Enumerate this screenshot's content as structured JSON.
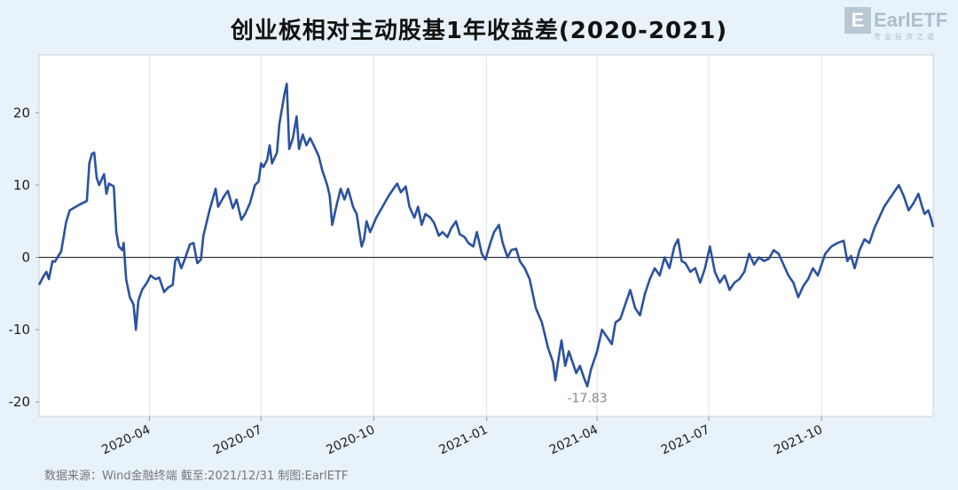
{
  "header": {
    "title": "创业板相对主动股基1年收益差(2020-2021)",
    "logo_text": "EarlETF",
    "logo_letter": "E",
    "logo_sub": "专业投资之道"
  },
  "footer": {
    "source": "数据来源：Wind金融终端 截至:2021/12/31 制图:EarlETF"
  },
  "colors": {
    "line": "#2a52a0",
    "background": "#e7f2fa",
    "plot_background": "#ffffff",
    "zero_line": "#333333",
    "annotation": "#888888"
  },
  "chart_data": {
    "type": "line",
    "title": "创业板相对主动股基1年收益差(2020-2021)",
    "xlabel": "",
    "ylabel": "",
    "xlim": [
      "2020-01-02",
      "2021-12-31"
    ],
    "ylim": [
      -22,
      28
    ],
    "y_ticks": [
      -20,
      -10,
      0,
      10,
      20
    ],
    "x_ticks": [
      {
        "date": "2020-04-01",
        "label": "2020-04"
      },
      {
        "date": "2020-07-01",
        "label": "2020-07"
      },
      {
        "date": "2020-10-01",
        "label": "2020-10"
      },
      {
        "date": "2021-01-01",
        "label": "2021-01"
      },
      {
        "date": "2021-04-01",
        "label": "2021-04"
      },
      {
        "date": "2021-07-01",
        "label": "2021-07"
      },
      {
        "date": "2021-10-01",
        "label": "2021-10"
      }
    ],
    "grid": {
      "x": true,
      "y": false
    },
    "reference_line": 0,
    "annotations": [
      {
        "date": "2021-03-24",
        "value": -17.83,
        "text": "-17.83"
      }
    ],
    "series": [
      {
        "points": [
          [
            "2020-01-02",
            -3.8
          ],
          [
            "2020-01-06",
            -2.5
          ],
          [
            "2020-01-08",
            -2.0
          ],
          [
            "2020-01-10",
            -3.0
          ],
          [
            "2020-01-13",
            -0.5
          ],
          [
            "2020-01-15",
            -0.6
          ],
          [
            "2020-01-17",
            0.0
          ],
          [
            "2020-01-20",
            0.8
          ],
          [
            "2020-01-22",
            2.8
          ],
          [
            "2020-01-24",
            4.8
          ],
          [
            "2020-01-27",
            6.5
          ],
          [
            "2020-02-03",
            7.2
          ],
          [
            "2020-02-10",
            7.8
          ],
          [
            "2020-02-12",
            13.0
          ],
          [
            "2020-02-14",
            14.3
          ],
          [
            "2020-02-16",
            14.5
          ],
          [
            "2020-02-18",
            11.0
          ],
          [
            "2020-02-20",
            10.0
          ],
          [
            "2020-02-24",
            11.5
          ],
          [
            "2020-02-26",
            8.8
          ],
          [
            "2020-02-28",
            10.2
          ],
          [
            "2020-03-03",
            9.8
          ],
          [
            "2020-03-05",
            3.5
          ],
          [
            "2020-03-07",
            1.5
          ],
          [
            "2020-03-10",
            1.0
          ],
          [
            "2020-03-11",
            2.0
          ],
          [
            "2020-03-13",
            -3.0
          ],
          [
            "2020-03-16",
            -5.5
          ],
          [
            "2020-03-19",
            -6.5
          ],
          [
            "2020-03-21",
            -10.0
          ],
          [
            "2020-03-23",
            -6.0
          ],
          [
            "2020-03-26",
            -4.5
          ],
          [
            "2020-03-30",
            -3.5
          ],
          [
            "2020-04-02",
            -2.5
          ],
          [
            "2020-04-06",
            -3.0
          ],
          [
            "2020-04-09",
            -2.8
          ],
          [
            "2020-04-13",
            -4.8
          ],
          [
            "2020-04-16",
            -4.2
          ],
          [
            "2020-04-20",
            -3.8
          ],
          [
            "2020-04-22",
            -0.5
          ],
          [
            "2020-04-24",
            0.0
          ],
          [
            "2020-04-27",
            -1.5
          ],
          [
            "2020-04-30",
            -0.2
          ],
          [
            "2020-05-04",
            1.8
          ],
          [
            "2020-05-07",
            2.0
          ],
          [
            "2020-05-10",
            -0.8
          ],
          [
            "2020-05-13",
            -0.3
          ],
          [
            "2020-05-15",
            3.0
          ],
          [
            "2020-05-20",
            6.5
          ],
          [
            "2020-05-25",
            9.5
          ],
          [
            "2020-05-27",
            7.0
          ],
          [
            "2020-06-01",
            8.5
          ],
          [
            "2020-06-04",
            9.2
          ],
          [
            "2020-06-08",
            6.8
          ],
          [
            "2020-06-11",
            8.0
          ],
          [
            "2020-06-15",
            5.2
          ],
          [
            "2020-06-18",
            6.0
          ],
          [
            "2020-06-22",
            7.5
          ],
          [
            "2020-06-26",
            10.0
          ],
          [
            "2020-06-29",
            10.5
          ],
          [
            "2020-07-01",
            13.0
          ],
          [
            "2020-07-03",
            12.5
          ],
          [
            "2020-07-06",
            13.5
          ],
          [
            "2020-07-08",
            15.5
          ],
          [
            "2020-07-10",
            13.0
          ],
          [
            "2020-07-14",
            14.5
          ],
          [
            "2020-07-16",
            18.5
          ],
          [
            "2020-07-18",
            20.5
          ],
          [
            "2020-07-20",
            22.5
          ],
          [
            "2020-07-22",
            24.0
          ],
          [
            "2020-07-24",
            15.0
          ],
          [
            "2020-07-27",
            16.5
          ],
          [
            "2020-07-30",
            19.5
          ],
          [
            "2020-08-01",
            15.0
          ],
          [
            "2020-08-04",
            17.0
          ],
          [
            "2020-08-07",
            15.5
          ],
          [
            "2020-08-10",
            16.5
          ],
          [
            "2020-08-13",
            15.5
          ],
          [
            "2020-08-17",
            14.0
          ],
          [
            "2020-08-20",
            12.0
          ],
          [
            "2020-08-24",
            10.0
          ],
          [
            "2020-08-26",
            8.5
          ],
          [
            "2020-08-28",
            4.5
          ],
          [
            "2020-09-01",
            7.5
          ],
          [
            "2020-09-04",
            9.5
          ],
          [
            "2020-09-07",
            8.0
          ],
          [
            "2020-09-10",
            9.5
          ],
          [
            "2020-09-14",
            7.0
          ],
          [
            "2020-09-17",
            6.0
          ],
          [
            "2020-09-21",
            1.5
          ],
          [
            "2020-09-23",
            2.5
          ],
          [
            "2020-09-25",
            5.0
          ],
          [
            "2020-09-28",
            3.5
          ],
          [
            "2020-10-03",
            5.5
          ],
          [
            "2020-10-08",
            7.0
          ],
          [
            "2020-10-13",
            8.5
          ],
          [
            "2020-10-17",
            9.5
          ],
          [
            "2020-10-20",
            10.2
          ],
          [
            "2020-10-23",
            9.0
          ],
          [
            "2020-10-27",
            9.8
          ],
          [
            "2020-10-30",
            7.0
          ],
          [
            "2020-11-03",
            5.5
          ],
          [
            "2020-11-06",
            7.0
          ],
          [
            "2020-11-09",
            4.5
          ],
          [
            "2020-11-12",
            6.0
          ],
          [
            "2020-11-16",
            5.5
          ],
          [
            "2020-11-19",
            4.8
          ],
          [
            "2020-11-23",
            3.0
          ],
          [
            "2020-11-26",
            3.5
          ],
          [
            "2020-11-30",
            2.8
          ],
          [
            "2020-12-03",
            4.0
          ],
          [
            "2020-12-07",
            5.0
          ],
          [
            "2020-12-10",
            3.2
          ],
          [
            "2020-12-14",
            2.8
          ],
          [
            "2020-12-17",
            2.0
          ],
          [
            "2020-12-21",
            1.5
          ],
          [
            "2020-12-24",
            3.5
          ],
          [
            "2020-12-28",
            0.5
          ],
          [
            "2020-12-31",
            -0.3
          ],
          [
            "2021-01-04",
            2.0
          ],
          [
            "2021-01-07",
            3.5
          ],
          [
            "2021-01-11",
            4.5
          ],
          [
            "2021-01-14",
            2.0
          ],
          [
            "2021-01-18",
            0.0
          ],
          [
            "2021-01-21",
            1.0
          ],
          [
            "2021-01-25",
            1.2
          ],
          [
            "2021-01-28",
            -0.5
          ],
          [
            "2021-02-01",
            -1.5
          ],
          [
            "2021-02-05",
            -3.0
          ],
          [
            "2021-02-10",
            -7.0
          ],
          [
            "2021-02-15",
            -9.0
          ],
          [
            "2021-02-20",
            -12.5
          ],
          [
            "2021-02-24",
            -14.5
          ],
          [
            "2021-02-26",
            -17.0
          ],
          [
            "2021-03-01",
            -13.5
          ],
          [
            "2021-03-03",
            -11.5
          ],
          [
            "2021-03-06",
            -15.0
          ],
          [
            "2021-03-09",
            -13.0
          ],
          [
            "2021-03-12",
            -14.5
          ],
          [
            "2021-03-15",
            -16.0
          ],
          [
            "2021-03-18",
            -15.0
          ],
          [
            "2021-03-21",
            -16.5
          ],
          [
            "2021-03-24",
            -17.83
          ],
          [
            "2021-03-27",
            -15.5
          ],
          [
            "2021-04-01",
            -13.0
          ],
          [
            "2021-04-05",
            -10.0
          ],
          [
            "2021-04-09",
            -11.0
          ],
          [
            "2021-04-13",
            -12.0
          ],
          [
            "2021-04-16",
            -9.0
          ],
          [
            "2021-04-20",
            -8.5
          ],
          [
            "2021-04-24",
            -6.5
          ],
          [
            "2021-04-28",
            -4.5
          ],
          [
            "2021-05-02",
            -7.0
          ],
          [
            "2021-05-06",
            -8.0
          ],
          [
            "2021-05-10",
            -5.0
          ],
          [
            "2021-05-14",
            -3.0
          ],
          [
            "2021-05-18",
            -1.5
          ],
          [
            "2021-05-22",
            -2.5
          ],
          [
            "2021-05-26",
            0.0
          ],
          [
            "2021-05-30",
            -1.5
          ],
          [
            "2021-06-03",
            1.5
          ],
          [
            "2021-06-06",
            2.5
          ],
          [
            "2021-06-09",
            -0.5
          ],
          [
            "2021-06-12",
            -0.8
          ],
          [
            "2021-06-16",
            -2.0
          ],
          [
            "2021-06-20",
            -1.5
          ],
          [
            "2021-06-24",
            -3.5
          ],
          [
            "2021-06-28",
            -1.5
          ],
          [
            "2021-07-02",
            1.5
          ],
          [
            "2021-07-06",
            -2.0
          ],
          [
            "2021-07-10",
            -3.5
          ],
          [
            "2021-07-14",
            -2.5
          ],
          [
            "2021-07-18",
            -4.5
          ],
          [
            "2021-07-22",
            -3.5
          ],
          [
            "2021-07-26",
            -3.0
          ],
          [
            "2021-07-30",
            -2.0
          ],
          [
            "2021-08-03",
            0.5
          ],
          [
            "2021-08-07",
            -1.0
          ],
          [
            "2021-08-11",
            0.0
          ],
          [
            "2021-08-15",
            -0.5
          ],
          [
            "2021-08-19",
            -0.2
          ],
          [
            "2021-08-23",
            1.0
          ],
          [
            "2021-08-27",
            0.5
          ],
          [
            "2021-08-31",
            -1.0
          ],
          [
            "2021-09-04",
            -2.5
          ],
          [
            "2021-09-08",
            -3.5
          ],
          [
            "2021-09-12",
            -5.5
          ],
          [
            "2021-09-16",
            -4.0
          ],
          [
            "2021-09-20",
            -3.0
          ],
          [
            "2021-09-24",
            -1.5
          ],
          [
            "2021-09-28",
            -2.5
          ],
          [
            "2021-10-04",
            0.5
          ],
          [
            "2021-10-09",
            1.5
          ],
          [
            "2021-10-14",
            2.0
          ],
          [
            "2021-10-19",
            2.3
          ],
          [
            "2021-10-22",
            -0.5
          ],
          [
            "2021-10-25",
            0.2
          ],
          [
            "2021-10-28",
            -1.5
          ],
          [
            "2021-11-01",
            1.0
          ],
          [
            "2021-11-05",
            2.5
          ],
          [
            "2021-11-09",
            2.0
          ],
          [
            "2021-11-13",
            4.0
          ],
          [
            "2021-11-17",
            5.5
          ],
          [
            "2021-11-21",
            7.0
          ],
          [
            "2021-11-25",
            8.0
          ],
          [
            "2021-11-29",
            9.0
          ],
          [
            "2021-12-03",
            10.0
          ],
          [
            "2021-12-07",
            8.5
          ],
          [
            "2021-12-11",
            6.5
          ],
          [
            "2021-12-15",
            7.5
          ],
          [
            "2021-12-19",
            8.8
          ],
          [
            "2021-12-22",
            7.0
          ],
          [
            "2021-12-24",
            6.0
          ],
          [
            "2021-12-27",
            6.5
          ],
          [
            "2021-12-29",
            5.5
          ],
          [
            "2021-12-31",
            4.2
          ]
        ]
      }
    ]
  }
}
